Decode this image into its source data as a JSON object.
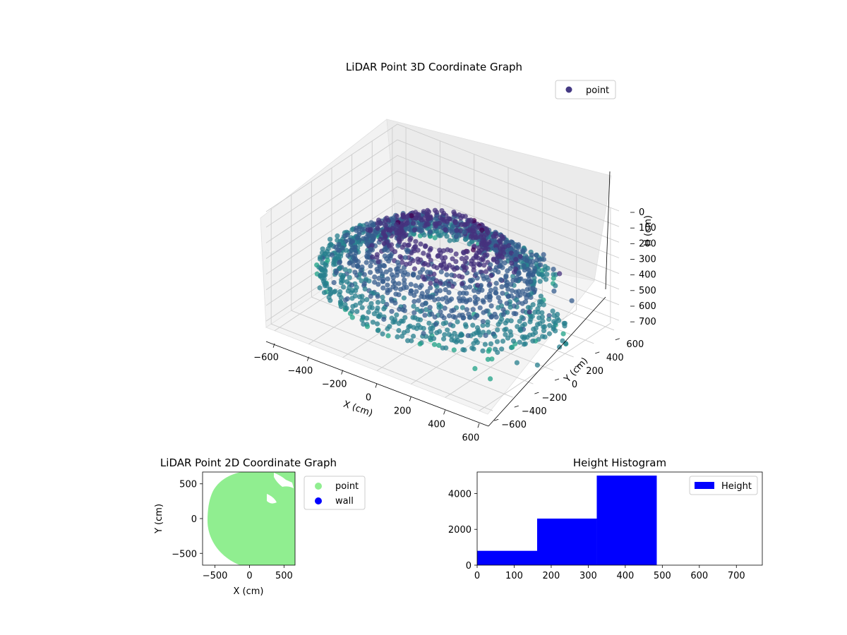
{
  "chart_data": [
    {
      "type": "scatter",
      "projection": "3d",
      "title": "LiDAR Point 3D Coordinate Graph",
      "xlabel": "X (cm)",
      "ylabel": "Y (cm)",
      "zlabel": "H (cm)",
      "xticks": [
        "−600",
        "−400",
        "−200",
        "0",
        "200",
        "400",
        "600"
      ],
      "yticks": [
        "−600",
        "−400",
        "−200",
        "0",
        "200",
        "400",
        "600"
      ],
      "zticks": [
        "0",
        "100",
        "200",
        "300",
        "400",
        "500",
        "600",
        "700"
      ],
      "xlim": [
        -650,
        650
      ],
      "ylim": [
        -650,
        650
      ],
      "zlim": [
        0,
        740
      ],
      "z_axis_inverted": true,
      "grid": true,
      "legend": {
        "placement": "top-right",
        "entries": [
          {
            "label": "point",
            "color": "#443983"
          }
        ]
      },
      "colormap": "viridis",
      "series": [
        {
          "name": "point",
          "description_of_shape": "rings at radius ~200-650 cm, heights ~80-500 cm"
        }
      ]
    },
    {
      "type": "scatter",
      "title": "LiDAR Point 2D Coordinate Graph",
      "xlabel": "X (cm)",
      "ylabel": "Y (cm)",
      "xticks": [
        "−500",
        "0",
        "500"
      ],
      "yticks": [
        "−500",
        "0",
        "500"
      ],
      "xlim": [
        -680,
        660
      ],
      "ylim": [
        -670,
        670
      ],
      "legend": {
        "placement": "outside-right",
        "entries": [
          {
            "label": "point",
            "color": "#90ee90"
          },
          {
            "label": "wall",
            "color": "#0000ff"
          }
        ]
      },
      "series": [
        {
          "name": "point",
          "color": "#90ee90",
          "region": "disc of radius ~600 cm centred at (30, -30)"
        },
        {
          "name": "wall",
          "color": "#0000ff",
          "points": []
        }
      ]
    },
    {
      "type": "bar",
      "subtype": "histogram",
      "title": "Height Histogram",
      "xlabel": "",
      "ylabel": "",
      "xticks": [
        "0",
        "100",
        "200",
        "300",
        "400",
        "500",
        "600",
        "700"
      ],
      "yticks": [
        "0",
        "2000",
        "4000"
      ],
      "xlim": [
        0,
        770
      ],
      "ylim": [
        0,
        5200
      ],
      "legend": {
        "placement": "top-right",
        "entries": [
          {
            "label": "Height",
            "color": "#0000ff"
          }
        ]
      },
      "bins": [
        {
          "from": 0,
          "to": 162,
          "count": 800
        },
        {
          "from": 162,
          "to": 323,
          "count": 2600
        },
        {
          "from": 323,
          "to": 485,
          "count": 5000
        }
      ],
      "color": "#0000ff"
    }
  ]
}
